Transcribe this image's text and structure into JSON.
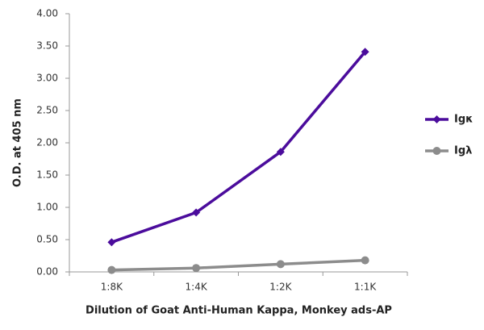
{
  "chart_data": {
    "type": "line",
    "x_label": "Dilution of Goat Anti-Human Kappa, Monkey ads-AP",
    "y_label": "O.D. at 405 nm",
    "categories": [
      "1:8K",
      "1:4K",
      "1:2K",
      "1:1K"
    ],
    "series": [
      {
        "name": "Igκ",
        "color": "#4b0c9c",
        "marker": "diamond",
        "values": [
          0.46,
          0.92,
          1.86,
          3.41
        ]
      },
      {
        "name": "Igλ",
        "color": "#8c8c8c",
        "marker": "circle",
        "values": [
          0.03,
          0.06,
          0.12,
          0.18
        ]
      }
    ],
    "ylim": [
      0,
      4
    ],
    "yticks": [
      {
        "value": 0,
        "label": "0.00"
      },
      {
        "value": 0.5,
        "label": "0.50"
      },
      {
        "value": 1,
        "label": "1.00"
      },
      {
        "value": 1.5,
        "label": "1.50"
      },
      {
        "value": 2,
        "label": "2.00"
      },
      {
        "value": 2.5,
        "label": "2.50"
      },
      {
        "value": 3,
        "label": "3.00"
      },
      {
        "value": 3.5,
        "label": "3.50"
      },
      {
        "value": 4,
        "label": "4.00"
      }
    ],
    "grid": false,
    "legend": "right"
  }
}
